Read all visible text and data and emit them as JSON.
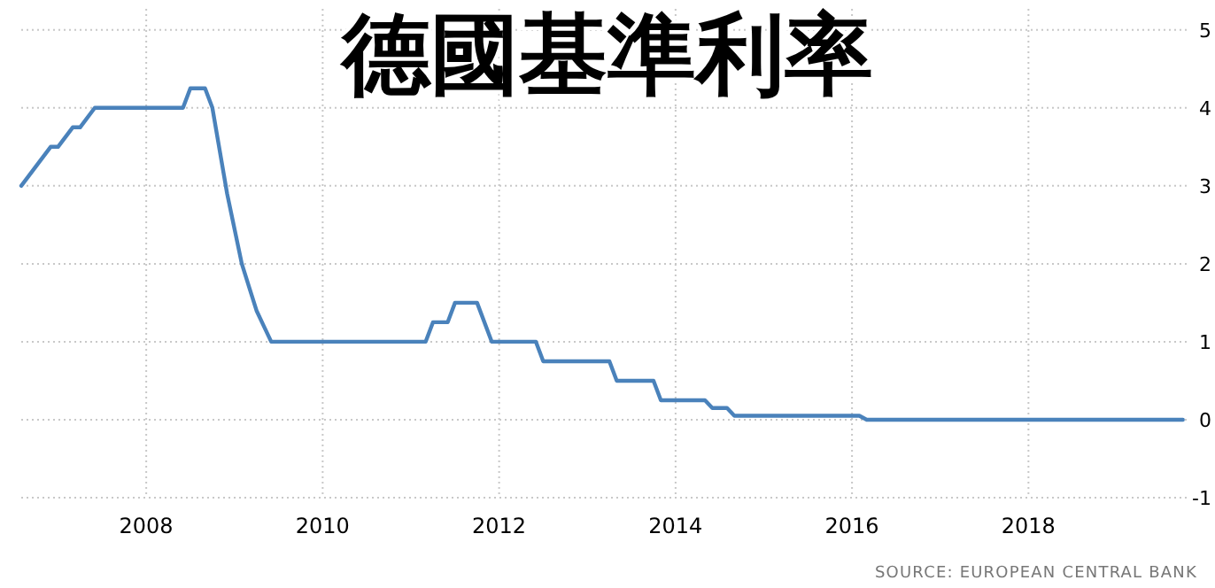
{
  "chart_data": {
    "type": "line",
    "title": "德國基準利率",
    "x": [
      "2006-08",
      "2006-10",
      "2006-12",
      "2007-01",
      "2007-03",
      "2007-04",
      "2007-06",
      "2008-06",
      "2008-07",
      "2008-09",
      "2008-10",
      "2008-12",
      "2009-02",
      "2009-03",
      "2009-04",
      "2009-05",
      "2009-06",
      "2011-03",
      "2011-04",
      "2011-06",
      "2011-07",
      "2011-10",
      "2011-12",
      "2012-06",
      "2012-07",
      "2013-04",
      "2013-05",
      "2013-10",
      "2013-11",
      "2014-05",
      "2014-06",
      "2014-08",
      "2014-09",
      "2016-02",
      "2016-03",
      "2019-10"
    ],
    "series": [
      {
        "color": "#4a82bb",
        "values": [
          3.0,
          3.25,
          3.5,
          3.5,
          3.75,
          3.75,
          4.0,
          4.0,
          4.25,
          4.25,
          4.0,
          2.9,
          2.0,
          1.7,
          1.4,
          1.2,
          1.0,
          1.0,
          1.25,
          1.25,
          1.5,
          1.5,
          1.0,
          1.0,
          0.75,
          0.75,
          0.5,
          0.5,
          0.25,
          0.25,
          0.15,
          0.15,
          0.05,
          0.05,
          0.0,
          0.0
        ]
      }
    ],
    "xlim": [
      "2006-08",
      "2019-11"
    ],
    "xticks": [
      "2008",
      "2010",
      "2012",
      "2014",
      "2016",
      "2018"
    ],
    "ylim": [
      -1,
      5.27
    ],
    "yticks": [
      -1,
      0,
      1,
      2,
      3,
      4,
      5
    ],
    "grid": true,
    "marker": "none",
    "line_style": "solid",
    "annotations": [
      "SOURCE: EUROPEAN CENTRAL BANK"
    ]
  }
}
